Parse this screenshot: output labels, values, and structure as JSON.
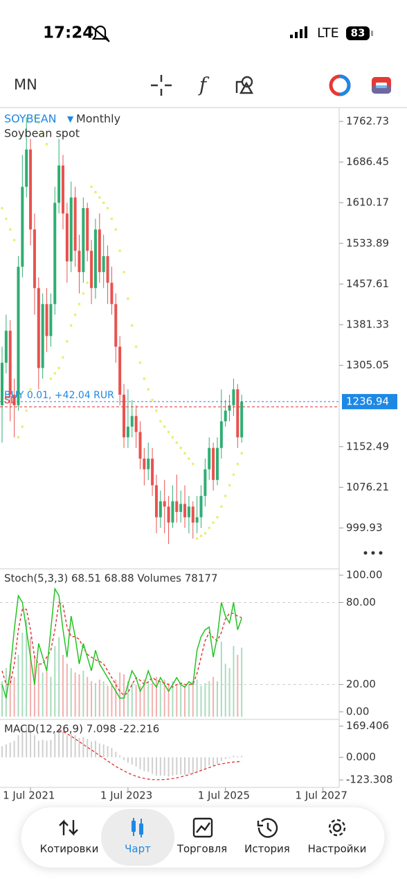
{
  "status_bar": {
    "time": "17:24",
    "network": "LTE",
    "battery": "83"
  },
  "toolbar": {
    "timeframe": "MN"
  },
  "chart_data": [
    {
      "type": "candlestick",
      "title": "SOYBEAN",
      "timeframe": "Monthly",
      "subtitle": "Soybean spot",
      "x": [
        "2020-12",
        "2021-01",
        "2021-02",
        "2021-03",
        "2021-04",
        "2021-05",
        "2021-06",
        "2021-07",
        "2021-08",
        "2021-09",
        "2021-10",
        "2021-11",
        "2021-12",
        "2022-01",
        "2022-02",
        "2022-03",
        "2022-04",
        "2022-05",
        "2022-06",
        "2022-07",
        "2022-08",
        "2022-09",
        "2022-10",
        "2022-11",
        "2022-12",
        "2023-01",
        "2023-02",
        "2023-03",
        "2023-04",
        "2023-05",
        "2023-06",
        "2023-07",
        "2023-08",
        "2023-09",
        "2023-10",
        "2023-11",
        "2023-12",
        "2024-01",
        "2024-02",
        "2024-03",
        "2024-04",
        "2024-05",
        "2024-06",
        "2024-07",
        "2024-08",
        "2024-09",
        "2024-10",
        "2024-11",
        "2024-12",
        "2025-01",
        "2025-02",
        "2025-03",
        "2025-04",
        "2025-05",
        "2025-06",
        "2025-07",
        "2025-08",
        "2025-09",
        "2025-10",
        "2025-11"
      ],
      "open": [
        1230,
        1310,
        1370,
        1250,
        1230,
        1490,
        1640,
        1710,
        1560,
        1450,
        1300,
        1420,
        1360,
        1420,
        1610,
        1680,
        1590,
        1500,
        1620,
        1520,
        1480,
        1600,
        1520,
        1450,
        1560,
        1480,
        1510,
        1460,
        1420,
        1340,
        1250,
        1170,
        1190,
        1210,
        1180,
        1130,
        1110,
        1130,
        1080,
        1020,
        1050,
        1040,
        1010,
        1050,
        1030,
        1045,
        1020,
        1040,
        1010,
        1020,
        1060,
        1110,
        1150,
        1090,
        1150,
        1200,
        1220,
        1230,
        1260,
        1170
      ],
      "high": [
        1340,
        1400,
        1390,
        1280,
        1510,
        1700,
        1770,
        1730,
        1590,
        1470,
        1440,
        1450,
        1440,
        1640,
        1730,
        1700,
        1610,
        1650,
        1640,
        1550,
        1620,
        1610,
        1540,
        1580,
        1590,
        1550,
        1530,
        1490,
        1440,
        1360,
        1270,
        1260,
        1240,
        1230,
        1200,
        1150,
        1160,
        1150,
        1100,
        1070,
        1090,
        1060,
        1080,
        1100,
        1070,
        1080,
        1060,
        1050,
        1060,
        1080,
        1130,
        1170,
        1160,
        1170,
        1260,
        1240,
        1250,
        1280,
        1270,
        1250
      ],
      "low": [
        1160,
        1290,
        1200,
        1170,
        1220,
        1470,
        1620,
        1530,
        1400,
        1260,
        1280,
        1330,
        1340,
        1400,
        1590,
        1560,
        1460,
        1480,
        1490,
        1440,
        1460,
        1500,
        1420,
        1430,
        1460,
        1450,
        1420,
        1400,
        1310,
        1230,
        1150,
        1150,
        1170,
        1150,
        1110,
        1080,
        1090,
        1060,
        990,
        1000,
        990,
        970,
        1000,
        1010,
        1010,
        1000,
        990,
        980,
        990,
        1000,
        1040,
        1090,
        1070,
        1080,
        1130,
        1190,
        1200,
        1210,
        1150,
        1160
      ],
      "close": [
        1310,
        1370,
        1250,
        1230,
        1490,
        1640,
        1710,
        1560,
        1450,
        1300,
        1420,
        1360,
        1420,
        1610,
        1680,
        1590,
        1500,
        1620,
        1520,
        1480,
        1600,
        1520,
        1450,
        1560,
        1480,
        1510,
        1460,
        1420,
        1340,
        1250,
        1170,
        1190,
        1210,
        1180,
        1130,
        1110,
        1130,
        1080,
        1020,
        1050,
        1040,
        1010,
        1050,
        1030,
        1045,
        1020,
        1040,
        1010,
        1020,
        1060,
        1110,
        1150,
        1090,
        1150,
        1200,
        1220,
        1230,
        1260,
        1170,
        1236.94
      ],
      "sar": [
        1600,
        1580,
        1560,
        1540,
        1170,
        1190,
        1220,
        1260,
        1770,
        1760,
        1740,
        1720,
        1280,
        1290,
        1300,
        1320,
        1350,
        1380,
        1400,
        1420,
        1440,
        1460,
        1640,
        1630,
        1620,
        1610,
        1600,
        1580,
        1560,
        1520,
        1480,
        1430,
        1380,
        1340,
        1310,
        1280,
        1260,
        1240,
        1220,
        1200,
        1190,
        1180,
        1170,
        1160,
        1150,
        1140,
        1130,
        1120,
        980,
        985,
        990,
        1000,
        1010,
        1020,
        1040,
        1060,
        1080,
        1100,
        1120,
        1140
      ],
      "up_color": "#2fae72",
      "down_color": "#e8524f",
      "sar_color": "#e4f06a",
      "position": {
        "label": "BUY 0.01, +42.04 RUR"
      },
      "stop_loss": {
        "label": "SL",
        "price": 1227
      },
      "xlim": [
        "2020-12",
        "2027-11"
      ],
      "xticks": [
        {
          "value": "2021-07",
          "label": "1 Jul 2021"
        },
        {
          "value": "2023-07",
          "label": "1 Jul 2023"
        },
        {
          "value": "2025-07",
          "label": "1 Jul 2025"
        },
        {
          "value": "2027-07",
          "label": "1 Jul 2027"
        }
      ],
      "ylim": [
        923.13,
        1788.76
      ],
      "yticks": [
        1762.73,
        1686.45,
        1610.17,
        1533.89,
        1457.61,
        1381.33,
        1305.05,
        1152.49,
        1076.21,
        999.93
      ]
    },
    {
      "type": "stochastic",
      "header": "Stoch(5,3,3) 68.51 68.88 Volumes 78177",
      "k": [
        20,
        10,
        30,
        60,
        85,
        80,
        60,
        40,
        20,
        50,
        40,
        30,
        60,
        90,
        85,
        60,
        40,
        70,
        55,
        35,
        50,
        40,
        30,
        45,
        35,
        30,
        25,
        20,
        15,
        10,
        10,
        20,
        30,
        25,
        15,
        20,
        30,
        22,
        18,
        25,
        20,
        15,
        20,
        25,
        20,
        18,
        22,
        20,
        45,
        55,
        60,
        62,
        40,
        55,
        80,
        70,
        65,
        80,
        60,
        68.51
      ],
      "d": [
        30,
        20,
        20,
        35,
        60,
        75,
        75,
        60,
        40,
        35,
        35,
        40,
        45,
        60,
        80,
        78,
        62,
        55,
        55,
        53,
        47,
        42,
        40,
        38,
        37,
        35,
        30,
        25,
        20,
        15,
        12,
        14,
        20,
        25,
        23,
        20,
        22,
        25,
        23,
        22,
        21,
        20,
        18,
        20,
        21,
        20,
        20,
        20,
        28,
        40,
        52,
        58,
        54,
        52,
        58,
        68,
        72,
        72,
        70,
        68.88
      ],
      "volumes": [
        40000,
        55000,
        60000,
        45000,
        70000,
        95000,
        110000,
        90000,
        70000,
        60000,
        50000,
        55000,
        45000,
        80000,
        90000,
        70000,
        60000,
        55000,
        50000,
        48000,
        52000,
        45000,
        40000,
        38000,
        42000,
        40000,
        35000,
        37000,
        42000,
        50000,
        48000,
        40000,
        38000,
        36000,
        35000,
        42000,
        40000,
        38000,
        45000,
        40000,
        42000,
        38000,
        40000,
        36000,
        38000,
        35000,
        37000,
        40000,
        42000,
        35000,
        38000,
        40000,
        45000,
        40000,
        85000,
        60000,
        55000,
        80000,
        70000,
        78177
      ],
      "k_color": "#22c322",
      "d_color": "#e03030",
      "ylim": [
        -5.6,
        104.6
      ],
      "yticks": [
        {
          "value": 100,
          "label": "100.00"
        },
        {
          "value": 80,
          "label": "80.00"
        },
        {
          "value": 20,
          "label": "20.00"
        },
        {
          "value": 0,
          "label": "0.00"
        }
      ],
      "levels": [
        80,
        20
      ]
    },
    {
      "type": "macd",
      "header": "MACD(12,26,9) 7.098 -22.216",
      "histogram": [
        60,
        70,
        80,
        90,
        120,
        160,
        165,
        150,
        120,
        90,
        95,
        90,
        95,
        130,
        150,
        140,
        120,
        130,
        120,
        105,
        110,
        100,
        85,
        90,
        75,
        70,
        60,
        50,
        30,
        10,
        -15,
        -30,
        -40,
        -50,
        -65,
        -75,
        -80,
        -90,
        -100,
        -100,
        -100,
        -105,
        -100,
        -95,
        -95,
        -95,
        -90,
        -90,
        -85,
        -75,
        -60,
        -45,
        -45,
        -35,
        -20,
        -10,
        -5,
        8,
        5,
        7.098
      ],
      "signal": [
        null,
        null,
        null,
        null,
        null,
        null,
        null,
        null,
        null,
        null,
        null,
        null,
        null,
        null,
        150,
        140,
        128,
        115,
        100,
        85,
        70,
        55,
        40,
        25,
        10,
        -5,
        -20,
        -35,
        -50,
        -62,
        -74,
        -85,
        -95,
        -103,
        -110,
        -115,
        -119,
        -121,
        -122,
        -122,
        -121,
        -119,
        -116,
        -112,
        -107,
        -101,
        -95,
        -88,
        -80,
        -72,
        -64,
        -56,
        -48,
        -40,
        -36,
        -32,
        -29,
        -26,
        -24,
        -22.216
      ],
      "histogram_color": "#cfcfcf",
      "signal_color": "#e03030",
      "ylim": [
        -164,
        206
      ],
      "yticks": [
        169.406,
        {
          "value": 0,
          "label": "0.000"
        },
        -123.308
      ]
    }
  ],
  "nav": {
    "items": [
      "Котировки",
      "Чарт",
      "Торговля",
      "История",
      "Настройки"
    ],
    "active": 1
  }
}
